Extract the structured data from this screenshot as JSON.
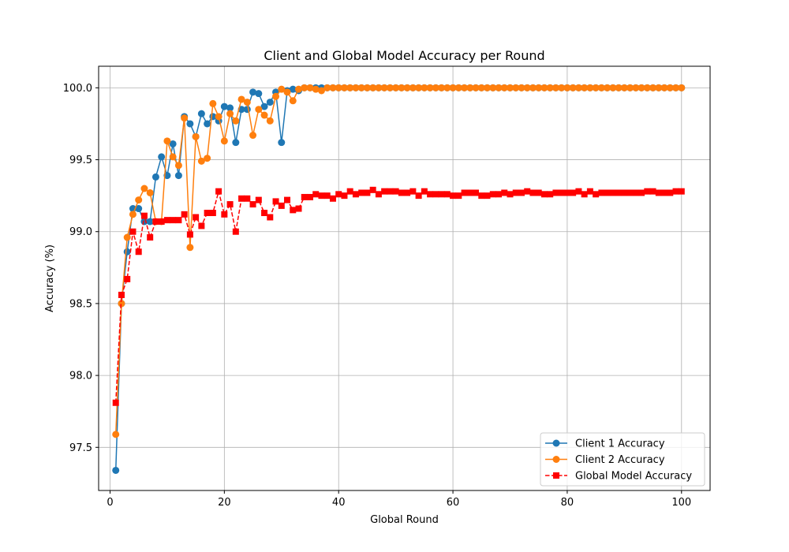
{
  "chart_data": {
    "type": "line",
    "title": "Client and Global Model Accuracy per Round",
    "xlabel": "Global Round",
    "ylabel": "Accuracy (%)",
    "xlim": [
      -2,
      105
    ],
    "ylim": [
      97.2,
      100.15
    ],
    "xticks": [
      0,
      20,
      40,
      60,
      80,
      100
    ],
    "yticks": [
      97.5,
      98.0,
      98.5,
      99.0,
      99.5,
      100.0
    ],
    "xtick_labels": [
      "0",
      "20",
      "40",
      "60",
      "80",
      "100"
    ],
    "ytick_labels": [
      "97.5",
      "98.0",
      "98.5",
      "99.0",
      "99.5",
      "100.0"
    ],
    "grid": true,
    "legend_position": "bottom-right",
    "x": [
      1,
      2,
      3,
      4,
      5,
      6,
      7,
      8,
      9,
      10,
      11,
      12,
      13,
      14,
      15,
      16,
      17,
      18,
      19,
      20,
      21,
      22,
      23,
      24,
      25,
      26,
      27,
      28,
      29,
      30,
      31,
      32,
      33,
      34,
      35,
      36,
      37,
      38,
      39,
      40,
      41,
      42,
      43,
      44,
      45,
      46,
      47,
      48,
      49,
      50,
      51,
      52,
      53,
      54,
      55,
      56,
      57,
      58,
      59,
      60,
      61,
      62,
      63,
      64,
      65,
      66,
      67,
      68,
      69,
      70,
      71,
      72,
      73,
      74,
      75,
      76,
      77,
      78,
      79,
      80,
      81,
      82,
      83,
      84,
      85,
      86,
      87,
      88,
      89,
      90,
      91,
      92,
      93,
      94,
      95,
      96,
      97,
      98,
      99,
      100
    ],
    "series": [
      {
        "name": "Client 1 Accuracy",
        "color": "#1f77b4",
        "marker": "circle",
        "linestyle": "solid",
        "values": [
          97.34,
          98.5,
          98.86,
          99.16,
          99.16,
          99.07,
          99.07,
          99.38,
          99.52,
          99.39,
          99.61,
          99.39,
          99.8,
          99.75,
          99.66,
          99.82,
          99.75,
          99.8,
          99.77,
          99.87,
          99.86,
          99.62,
          99.85,
          99.85,
          99.97,
          99.96,
          99.87,
          99.9,
          99.97,
          99.62,
          99.98,
          99.99,
          99.98,
          100.0,
          100.0,
          100.0,
          100.0,
          100.0,
          100.0,
          100.0,
          100.0,
          100.0,
          100.0,
          100.0,
          100.0,
          100.0,
          100.0,
          100.0,
          100.0,
          100.0,
          100.0,
          100.0,
          100.0,
          100.0,
          100.0,
          100.0,
          100.0,
          100.0,
          100.0,
          100.0,
          100.0,
          100.0,
          100.0,
          100.0,
          100.0,
          100.0,
          100.0,
          100.0,
          100.0,
          100.0,
          100.0,
          100.0,
          100.0,
          100.0,
          100.0,
          100.0,
          100.0,
          100.0,
          100.0,
          100.0,
          100.0,
          100.0,
          100.0,
          100.0,
          100.0,
          100.0,
          100.0,
          100.0,
          100.0,
          100.0,
          100.0,
          100.0,
          100.0,
          100.0,
          100.0,
          100.0,
          100.0,
          100.0,
          100.0,
          100.0
        ]
      },
      {
        "name": "Client 2 Accuracy",
        "color": "#ff7f0e",
        "marker": "circle",
        "linestyle": "solid",
        "values": [
          97.59,
          98.5,
          98.96,
          99.12,
          99.22,
          99.3,
          99.27,
          99.07,
          99.07,
          99.63,
          99.52,
          99.46,
          99.79,
          98.89,
          99.66,
          99.49,
          99.51,
          99.89,
          99.8,
          99.63,
          99.82,
          99.77,
          99.92,
          99.9,
          99.67,
          99.85,
          99.81,
          99.77,
          99.94,
          99.99,
          99.97,
          99.91,
          99.99,
          100.0,
          100.0,
          99.99,
          99.98,
          100.0,
          100.0,
          100.0,
          100.0,
          100.0,
          100.0,
          100.0,
          100.0,
          100.0,
          100.0,
          100.0,
          100.0,
          100.0,
          100.0,
          100.0,
          100.0,
          100.0,
          100.0,
          100.0,
          100.0,
          100.0,
          100.0,
          100.0,
          100.0,
          100.0,
          100.0,
          100.0,
          100.0,
          100.0,
          100.0,
          100.0,
          100.0,
          100.0,
          100.0,
          100.0,
          100.0,
          100.0,
          100.0,
          100.0,
          100.0,
          100.0,
          100.0,
          100.0,
          100.0,
          100.0,
          100.0,
          100.0,
          100.0,
          100.0,
          100.0,
          100.0,
          100.0,
          100.0,
          100.0,
          100.0,
          100.0,
          100.0,
          100.0,
          100.0,
          100.0,
          100.0,
          100.0,
          100.0
        ]
      },
      {
        "name": "Global Model Accuracy",
        "color": "#ff0000",
        "marker": "square",
        "linestyle": "dashed",
        "values": [
          97.81,
          98.56,
          98.67,
          99.0,
          98.86,
          99.11,
          98.96,
          99.07,
          99.07,
          99.08,
          99.08,
          99.08,
          99.12,
          98.98,
          99.1,
          99.04,
          99.13,
          99.13,
          99.28,
          99.12,
          99.19,
          99.0,
          99.23,
          99.23,
          99.19,
          99.22,
          99.13,
          99.1,
          99.21,
          99.18,
          99.22,
          99.15,
          99.16,
          99.24,
          99.24,
          99.26,
          99.25,
          99.25,
          99.23,
          99.26,
          99.25,
          99.28,
          99.26,
          99.27,
          99.27,
          99.29,
          99.26,
          99.28,
          99.28,
          99.28,
          99.27,
          99.27,
          99.28,
          99.25,
          99.28,
          99.26,
          99.26,
          99.26,
          99.26,
          99.25,
          99.25,
          99.27,
          99.27,
          99.27,
          99.25,
          99.25,
          99.26,
          99.26,
          99.27,
          99.26,
          99.27,
          99.27,
          99.28,
          99.27,
          99.27,
          99.26,
          99.26,
          99.27,
          99.27,
          99.27,
          99.27,
          99.28,
          99.26,
          99.28,
          99.26,
          99.27,
          99.27,
          99.27,
          99.27,
          99.27,
          99.27,
          99.27,
          99.27,
          99.28,
          99.28,
          99.27,
          99.27,
          99.27,
          99.28,
          99.28
        ]
      }
    ]
  }
}
